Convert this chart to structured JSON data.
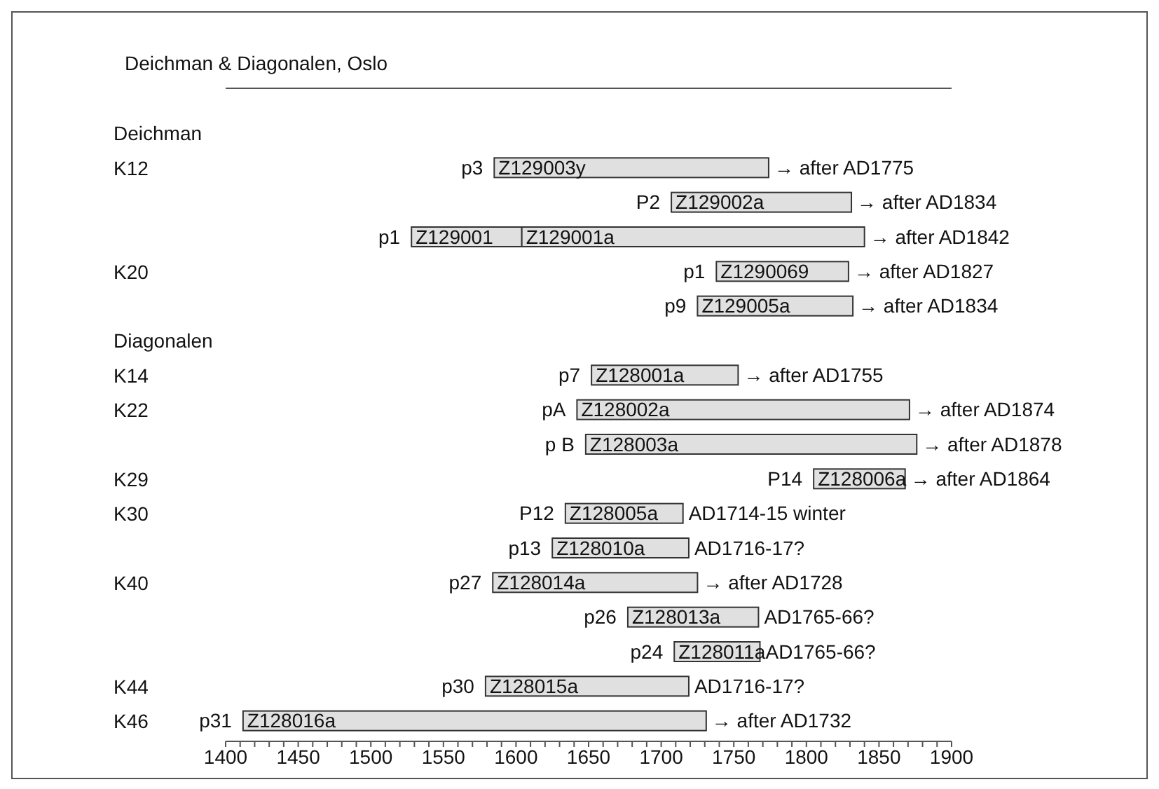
{
  "chart_data": {
    "type": "bar",
    "orientation": "horizontal",
    "title": "Deichman & Diagonalen, Oslo",
    "categories": [
      "Deichman",
      "K12",
      null,
      null,
      "K20",
      null,
      "Diagonalen",
      "K14",
      "K22",
      null,
      "K29",
      "K30",
      null,
      "K40",
      null,
      null,
      "K44",
      "K46"
    ],
    "series": [
      {
        "color": "#e0e0e0",
        "base": [
          null,
          1585,
          1707,
          1528,
          1738,
          1725,
          null,
          1652,
          1642,
          1648,
          1805,
          1634,
          1625,
          1584,
          1677,
          1709,
          1579,
          1412
        ],
        "values": [
          null,
          189,
          124,
          76,
          91,
          107,
          null,
          101,
          229,
          228,
          63,
          81,
          94,
          141,
          90,
          59,
          140,
          319
        ],
        "value_labels": [
          null,
          "Z129003y",
          "Z129002a",
          "Z129001",
          "Z1290069",
          "Z129005a",
          null,
          "Z128001a",
          "Z128002a",
          "Z128003a",
          "Z128006a",
          "Z128005a",
          "Z128010a",
          "Z128014a",
          "Z128013a",
          "Z128011a",
          "Z128015a",
          "Z128016a"
        ]
      },
      {
        "color": "#e0e0e0",
        "base": [
          null,
          null,
          null,
          1604,
          null,
          null,
          null,
          null,
          null,
          null,
          null,
          null,
          null,
          null,
          null,
          null,
          null,
          null
        ],
        "values": [
          null,
          null,
          null,
          236,
          null,
          null,
          null,
          null,
          null,
          null,
          null,
          null,
          null,
          null,
          null,
          null,
          null,
          null
        ],
        "value_labels": [
          null,
          null,
          null,
          "Z129001a",
          null,
          null,
          null,
          null,
          null,
          null,
          null,
          null,
          null,
          null,
          null,
          null,
          null,
          null
        ]
      }
    ],
    "xlim": [
      1400,
      1900
    ],
    "xticks": [
      1400,
      {
        "value": 1410,
        "label": null
      },
      {
        "value": 1420,
        "label": null
      },
      {
        "value": 1430,
        "label": null
      },
      {
        "value": 1440,
        "label": null
      },
      1450,
      {
        "value": 1460,
        "label": null
      },
      {
        "value": 1470,
        "label": null
      },
      {
        "value": 1480,
        "label": null
      },
      {
        "value": 1490,
        "label": null
      },
      1500,
      {
        "value": 1510,
        "label": null
      },
      {
        "value": 1520,
        "label": null
      },
      {
        "value": 1530,
        "label": null
      },
      {
        "value": 1540,
        "label": null
      },
      1550,
      {
        "value": 1560,
        "label": null
      },
      {
        "value": 1570,
        "label": null
      },
      {
        "value": 1580,
        "label": null
      },
      {
        "value": 1590,
        "label": null
      },
      1600,
      {
        "value": 1610,
        "label": null
      },
      {
        "value": 1620,
        "label": null
      },
      {
        "value": 1630,
        "label": null
      },
      {
        "value": 1640,
        "label": null
      },
      1650,
      {
        "value": 1660,
        "label": null
      },
      {
        "value": 1670,
        "label": null
      },
      {
        "value": 1680,
        "label": null
      },
      {
        "value": 1690,
        "label": null
      },
      1700,
      {
        "value": 1710,
        "label": null
      },
      {
        "value": 1720,
        "label": null
      },
      {
        "value": 1730,
        "label": null
      },
      {
        "value": 1740,
        "label": null
      },
      1750,
      {
        "value": 1760,
        "label": null
      },
      {
        "value": 1770,
        "label": null
      },
      {
        "value": 1780,
        "label": null
      },
      {
        "value": 1790,
        "label": null
      },
      1800,
      {
        "value": 1810,
        "label": null
      },
      {
        "value": 1820,
        "label": null
      },
      {
        "value": 1830,
        "label": null
      },
      {
        "value": 1840,
        "label": null
      },
      1850,
      {
        "value": 1860,
        "label": null
      },
      {
        "value": 1870,
        "label": null
      },
      {
        "value": 1880,
        "label": null
      },
      {
        "value": 1890,
        "label": null
      },
      1900
    ],
    "annotations": [
      {
        "text": "p3",
        "x": 1585,
        "y": "K12"
      },
      {
        "text": "→ after AD1775",
        "x": 1774,
        "y": "K12"
      },
      {
        "text": "P2",
        "x": 1707
      },
      {
        "text": "→ after AD1834",
        "x": 1831
      },
      {
        "text": "p1",
        "x": 1528
      },
      {
        "text": "→ after AD1842",
        "x": 1840
      },
      {
        "text": "p1",
        "x": 1738,
        "y": "K20"
      },
      {
        "text": "→ after AD1827",
        "x": 1829,
        "y": "K20"
      },
      {
        "text": "p9",
        "x": 1725
      },
      {
        "text": "→ after AD1834",
        "x": 1832
      },
      {
        "text": "p7",
        "x": 1652,
        "y": "K14"
      },
      {
        "text": "→ after AD1755",
        "x": 1753,
        "y": "K14"
      },
      {
        "text": "pA",
        "x": 1642,
        "y": "K22"
      },
      {
        "text": "→ after AD1874",
        "x": 1871,
        "y": "K22"
      },
      {
        "text": "p B",
        "x": 1648
      },
      {
        "text": "→ after AD1878",
        "x": 1876
      },
      {
        "text": "P14",
        "x": 1805,
        "y": "K29"
      },
      {
        "text": "→ after AD1864",
        "x": 1868,
        "y": "K29"
      },
      {
        "text": "P12",
        "x": 1634,
        "y": "K30"
      },
      {
        "text": "AD1714-15 winter",
        "x": 1715,
        "y": "K30"
      },
      {
        "text": "p13",
        "x": 1625
      },
      {
        "text": "AD1716-17?",
        "x": 1719
      },
      {
        "text": "p27",
        "x": 1584,
        "y": "K40"
      },
      {
        "text": "→ after AD1728",
        "x": 1725,
        "y": "K40"
      },
      {
        "text": "p26",
        "x": 1677
      },
      {
        "text": "AD1765-66?",
        "x": 1767
      },
      {
        "text": "p24",
        "x": 1709
      },
      {
        "text": "AD1765-66?",
        "x": 1768
      },
      {
        "text": "p30",
        "x": 1579,
        "y": "K44"
      },
      {
        "text": "AD1716-17?",
        "x": 1719,
        "y": "K44"
      },
      {
        "text": "p31",
        "x": 1412,
        "y": "K46"
      },
      {
        "text": "→ after AD1732",
        "x": 1731,
        "y": "K46"
      }
    ]
  }
}
